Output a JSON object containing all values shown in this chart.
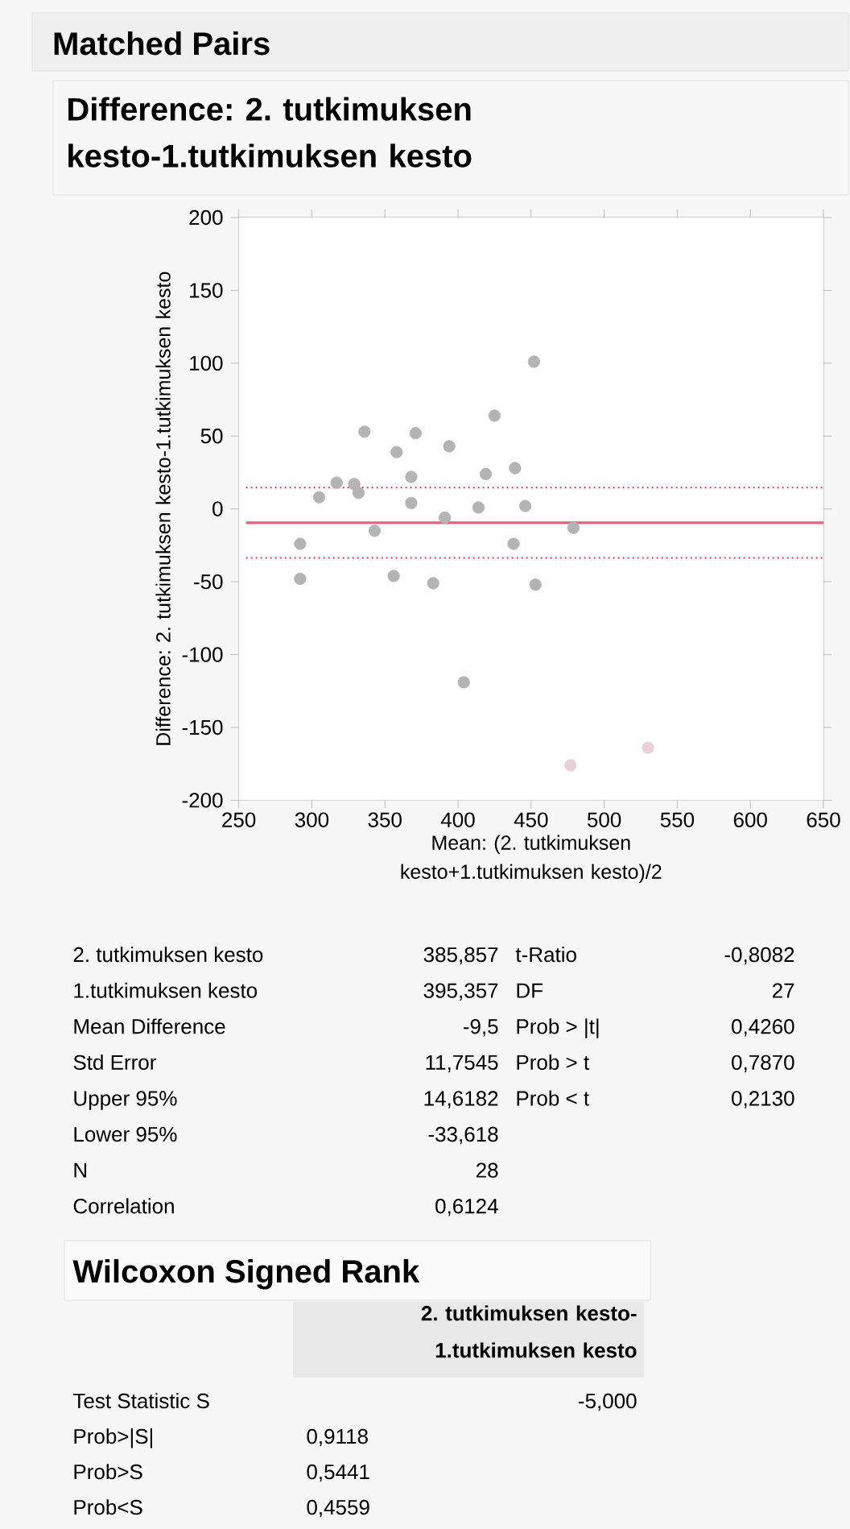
{
  "chart_data": {
    "type": "scatter",
    "title": "Matched Pairs",
    "subtitle": "Difference: 2. tutkimuksen kesto-1.tutkimuksen kesto",
    "xlabel": "Mean: (2. tutkimuksen kesto+1.tutkimuksen kesto)/2",
    "ylabel": "Difference: 2. tutkimuksen kesto-1.tutkimuksen kesto",
    "xlim": [
      250,
      650
    ],
    "xticks": [
      250,
      300,
      350,
      400,
      450,
      500,
      550,
      600,
      650
    ],
    "ylim": [
      -200,
      200
    ],
    "yticks": [
      -200,
      -150,
      -100,
      -50,
      0,
      50,
      100,
      150,
      200
    ],
    "grid": false,
    "series": [
      {
        "color": "#b4b4b4",
        "x": [
          292,
          292,
          305,
          317,
          329,
          332,
          336,
          343,
          356,
          358,
          368,
          368,
          371,
          383,
          391,
          394,
          404,
          414,
          419,
          425,
          438,
          439,
          446,
          452,
          453,
          479
        ],
        "values": [
          -24,
          -48,
          8,
          18,
          17,
          11,
          53,
          -15,
          -46,
          39,
          22,
          4,
          52,
          -51,
          -6,
          43,
          -119,
          1,
          24,
          64,
          -24,
          28,
          2,
          101,
          -52,
          -13
        ]
      },
      {
        "color": "#ecd0d8",
        "x": [
          477,
          530
        ],
        "values": [
          -176,
          -164
        ]
      }
    ],
    "ref_lines": [
      {
        "axis": "y",
        "value": -9.5,
        "color": "#e8607e",
        "line_style": "solid"
      },
      {
        "axis": "y",
        "value": 14.6182,
        "color": "#e03c64",
        "line_style": "dotted"
      },
      {
        "axis": "y",
        "value": -33.618,
        "color": "#e03c64",
        "line_style": "dotted"
      }
    ],
    "annotations": [
      "2. tutkimuksen kesto",
      "385,857",
      "t-Ratio",
      "-0,8082",
      "1.tutkimuksen kesto",
      "395,357",
      "DF",
      "27",
      "Mean Difference",
      "-9,5",
      "Prob > |t|",
      "0,4260",
      "Std Error",
      "11,7545",
      "Prob > t",
      "0,7870",
      "Upper 95%",
      "14,6182",
      "Prob < t",
      "0,2130",
      "Lower 95%",
      "-33,618",
      "N",
      "28",
      "Correlation",
      "0,6124",
      "Wilcoxon Signed Rank",
      "2. tutkimuksen kesto-1.tutkimuksen kesto",
      "Test Statistic S",
      "-5,000",
      "Prob>|S|",
      "0,9118",
      "Prob>S",
      "0,5441",
      "Prob<S",
      "0,4559"
    ]
  }
}
